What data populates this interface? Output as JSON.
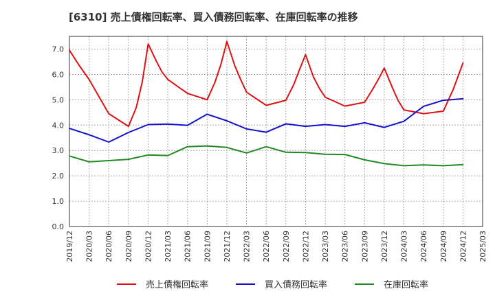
{
  "chart_data": {
    "type": "line",
    "title": "[6310]  売上債権回転率、買入債務回転率、在庫回転率の推移",
    "xlabel": "",
    "ylabel": "",
    "ylim": [
      0,
      7.5
    ],
    "y_ticks": [
      "0.0",
      "1.0",
      "2.0",
      "3.0",
      "4.0",
      "5.0",
      "6.0",
      "7.0"
    ],
    "x_ticks": [
      "2019/12",
      "2020/03",
      "2020/06",
      "2020/09",
      "2020/12",
      "2021/03",
      "2021/06",
      "2021/09",
      "2021/12",
      "2022/03",
      "2022/06",
      "2022/09",
      "2022/12",
      "2023/03",
      "2023/06",
      "2023/09",
      "2023/12",
      "2024/03",
      "2024/06",
      "2024/09",
      "2024/12",
      "2025/03"
    ],
    "x_domain": [
      0,
      21
    ],
    "grid": true,
    "legend_position": "bottom",
    "series": [
      {
        "name": "売上債権回転率",
        "color": "#dd1111",
        "points": [
          [
            0,
            6.95
          ],
          [
            0.5,
            6.35
          ],
          [
            1,
            5.8
          ],
          [
            2,
            4.45
          ],
          [
            3,
            3.95
          ],
          [
            3.4,
            4.7
          ],
          [
            3.7,
            5.7
          ],
          [
            4,
            7.2
          ],
          [
            4.4,
            6.55
          ],
          [
            4.7,
            6.1
          ],
          [
            5,
            5.8
          ],
          [
            6,
            5.25
          ],
          [
            7,
            5.0
          ],
          [
            7.4,
            5.7
          ],
          [
            7.7,
            6.4
          ],
          [
            8,
            7.3
          ],
          [
            8.4,
            6.35
          ],
          [
            8.7,
            5.8
          ],
          [
            9,
            5.3
          ],
          [
            10,
            4.78
          ],
          [
            11,
            4.98
          ],
          [
            11.4,
            5.6
          ],
          [
            11.7,
            6.2
          ],
          [
            12,
            6.78
          ],
          [
            12.4,
            5.9
          ],
          [
            12.7,
            5.45
          ],
          [
            13,
            5.1
          ],
          [
            14,
            4.75
          ],
          [
            15,
            4.9
          ],
          [
            15.4,
            5.4
          ],
          [
            15.7,
            5.8
          ],
          [
            16,
            6.25
          ],
          [
            16.4,
            5.5
          ],
          [
            16.7,
            4.98
          ],
          [
            17,
            4.6
          ],
          [
            18,
            4.45
          ],
          [
            19,
            4.55
          ],
          [
            19.5,
            5.4
          ],
          [
            20,
            6.45
          ]
        ]
      },
      {
        "name": "買入債務回転率",
        "color": "#1111cc",
        "points": [
          [
            0,
            3.87
          ],
          [
            1,
            3.62
          ],
          [
            2,
            3.33
          ],
          [
            3,
            3.71
          ],
          [
            4,
            4.02
          ],
          [
            5,
            4.04
          ],
          [
            6,
            3.99
          ],
          [
            7,
            4.43
          ],
          [
            8,
            4.17
          ],
          [
            9,
            3.85
          ],
          [
            10,
            3.72
          ],
          [
            11,
            4.05
          ],
          [
            12,
            3.95
          ],
          [
            13,
            4.02
          ],
          [
            14,
            3.95
          ],
          [
            15,
            4.09
          ],
          [
            16,
            3.91
          ],
          [
            17,
            4.15
          ],
          [
            18,
            4.74
          ],
          [
            19,
            4.98
          ],
          [
            20,
            5.04
          ]
        ]
      },
      {
        "name": "在庫回転率",
        "color": "#228822",
        "points": [
          [
            0,
            2.78
          ],
          [
            1,
            2.55
          ],
          [
            2,
            2.6
          ],
          [
            3,
            2.65
          ],
          [
            4,
            2.82
          ],
          [
            5,
            2.8
          ],
          [
            6,
            3.15
          ],
          [
            7,
            3.18
          ],
          [
            8,
            3.12
          ],
          [
            9,
            2.9
          ],
          [
            10,
            3.15
          ],
          [
            11,
            2.93
          ],
          [
            12,
            2.92
          ],
          [
            13,
            2.85
          ],
          [
            14,
            2.84
          ],
          [
            15,
            2.63
          ],
          [
            16,
            2.48
          ],
          [
            17,
            2.4
          ],
          [
            18,
            2.43
          ],
          [
            19,
            2.4
          ],
          [
            20,
            2.44
          ]
        ]
      }
    ]
  }
}
